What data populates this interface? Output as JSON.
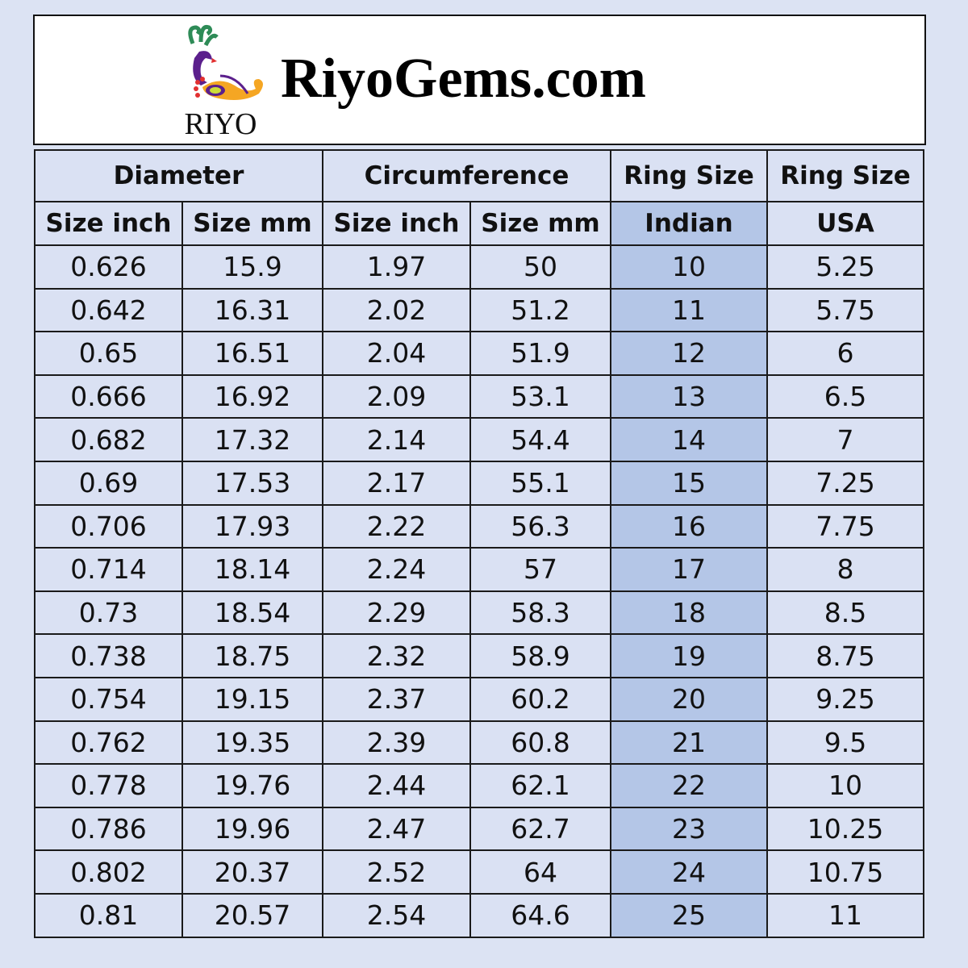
{
  "brand": {
    "logo_text": "RIYO",
    "site": "RiyoGems.com"
  },
  "headers": {
    "group": [
      "Diameter",
      "Circumference",
      "Ring Size",
      "Ring Size"
    ],
    "sub": [
      "Size inch",
      "Size mm",
      "Size inch",
      "Size mm",
      "Indian",
      "USA"
    ]
  },
  "colors": {
    "background": "#dce3f3",
    "cell": "#dae1f3",
    "highlight": "#b4c6e7"
  },
  "rows": [
    [
      "0.626",
      "15.9",
      "1.97",
      "50",
      "10",
      "5.25"
    ],
    [
      "0.642",
      "16.31",
      "2.02",
      "51.2",
      "11",
      "5.75"
    ],
    [
      "0.65",
      "16.51",
      "2.04",
      "51.9",
      "12",
      "6"
    ],
    [
      "0.666",
      "16.92",
      "2.09",
      "53.1",
      "13",
      "6.5"
    ],
    [
      "0.682",
      "17.32",
      "2.14",
      "54.4",
      "14",
      "7"
    ],
    [
      "0.69",
      "17.53",
      "2.17",
      "55.1",
      "15",
      "7.25"
    ],
    [
      "0.706",
      "17.93",
      "2.22",
      "56.3",
      "16",
      "7.75"
    ],
    [
      "0.714",
      "18.14",
      "2.24",
      "57",
      "17",
      "8"
    ],
    [
      "0.73",
      "18.54",
      "2.29",
      "58.3",
      "18",
      "8.5"
    ],
    [
      "0.738",
      "18.75",
      "2.32",
      "58.9",
      "19",
      "8.75"
    ],
    [
      "0.754",
      "19.15",
      "2.37",
      "60.2",
      "20",
      "9.25"
    ],
    [
      "0.762",
      "19.35",
      "2.39",
      "60.8",
      "21",
      "9.5"
    ],
    [
      "0.778",
      "19.76",
      "2.44",
      "62.1",
      "22",
      "10"
    ],
    [
      "0.786",
      "19.96",
      "2.47",
      "62.7",
      "23",
      "10.25"
    ],
    [
      "0.802",
      "20.37",
      "2.52",
      "64",
      "24",
      "10.75"
    ],
    [
      "0.81",
      "20.57",
      "2.54",
      "64.6",
      "25",
      "11"
    ]
  ]
}
